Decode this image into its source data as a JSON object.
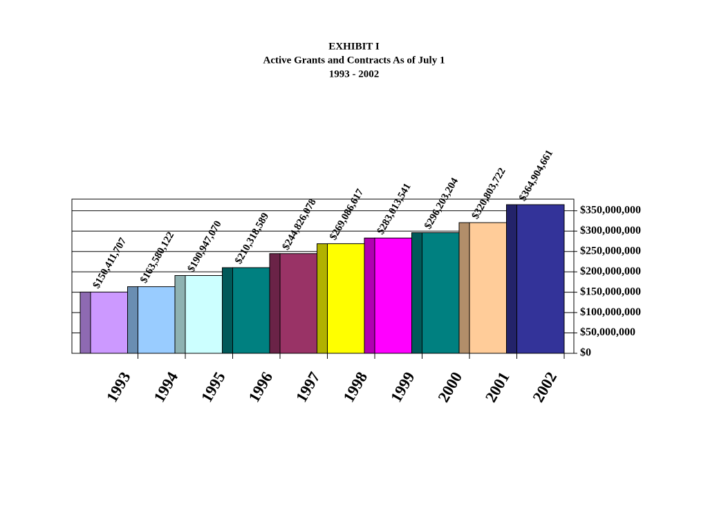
{
  "chart_data": {
    "type": "bar",
    "title": [
      "EXHIBIT I",
      "Active Grants and Contracts As of July 1",
      "1993 - 2002"
    ],
    "categories": [
      "1993",
      "1994",
      "1995",
      "1996",
      "1997",
      "1998",
      "1999",
      "2000",
      "2001",
      "2002"
    ],
    "values": [
      150411707,
      163580122,
      190947070,
      210318589,
      244826078,
      269086617,
      283013541,
      296203204,
      320803722,
      364904661
    ],
    "value_labels": [
      "$150,411,707",
      "$163,580,122",
      "$190,947,070",
      "$210,318,589",
      "$244,826,078",
      "$269,086,617",
      "$283,013,541",
      "$296,203,204",
      "$320,803,722",
      "$364,904,661"
    ],
    "colors": [
      "#cc99ff",
      "#99ccff",
      "#ccffff",
      "#008080",
      "#993366",
      "#ffff00",
      "#ff00ff",
      "#008080",
      "#ffcc99",
      "#333399"
    ],
    "ylim": [
      0,
      370000000
    ],
    "yticks": [
      {
        "value": 0,
        "label": "$0"
      },
      {
        "value": 50000000,
        "label": "$50,000,000"
      },
      {
        "value": 100000000,
        "label": "$100,000,000"
      },
      {
        "value": 150000000,
        "label": "$150,000,000"
      },
      {
        "value": 200000000,
        "label": "$200,000,000"
      },
      {
        "value": 250000000,
        "label": "$250,000,000"
      },
      {
        "value": 300000000,
        "label": "$300,000,000"
      },
      {
        "value": 350000000,
        "label": "$350,000,000"
      }
    ],
    "grid": true
  }
}
